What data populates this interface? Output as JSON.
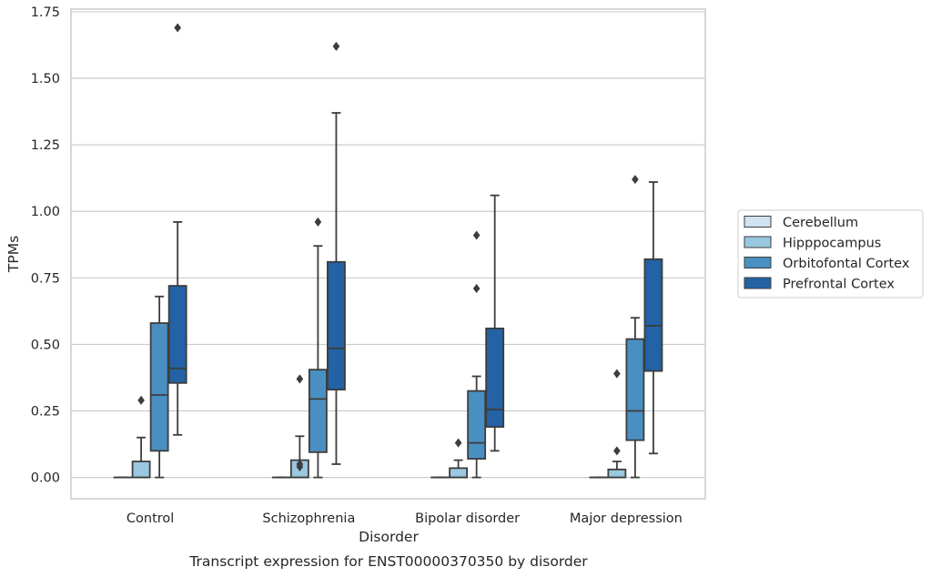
{
  "chart_data": {
    "type": "box",
    "title": "",
    "caption": "Transcript expression for ENST00000370350 by disorder",
    "xlabel": "Disorder",
    "ylabel": "TPMs",
    "ylim": [
      -0.08,
      1.76
    ],
    "yticks": [
      0.0,
      0.25,
      0.5,
      0.75,
      1.0,
      1.25,
      1.5,
      1.75
    ],
    "ytick_labels": [
      "0.00",
      "0.25",
      "0.50",
      "0.75",
      "1.00",
      "1.25",
      "1.50",
      "1.75"
    ],
    "grid": true,
    "legend_position": "right",
    "categories": [
      "Control",
      "Schizophrenia",
      "Bipolar disorder",
      "Major depression"
    ],
    "series": [
      {
        "name": "Cerebellum",
        "color": "#d1e2f2",
        "boxes": [
          {
            "min": 0,
            "q1": 0,
            "median": 0,
            "q3": 0,
            "max": 0,
            "outliers": []
          },
          {
            "min": 0,
            "q1": 0,
            "median": 0,
            "q3": 0,
            "max": 0,
            "outliers": []
          },
          {
            "min": 0,
            "q1": 0,
            "median": 0,
            "q3": 0,
            "max": 0,
            "outliers": []
          },
          {
            "min": 0,
            "q1": 0,
            "median": 0,
            "q3": 0,
            "max": 0,
            "outliers": []
          }
        ]
      },
      {
        "name": "Hipppocampus",
        "color": "#9ac8e0",
        "boxes": [
          {
            "min": 0,
            "q1": 0,
            "median": 0,
            "q3": 0.06,
            "max": 0.15,
            "outliers": [
              0.29
            ]
          },
          {
            "min": 0,
            "q1": 0,
            "median": 0,
            "q3": 0.065,
            "max": 0.155,
            "outliers": [
              0.37,
              0.04,
              0.05
            ]
          },
          {
            "min": 0,
            "q1": 0,
            "median": 0,
            "q3": 0.035,
            "max": 0.065,
            "outliers": [
              0.13
            ]
          },
          {
            "min": 0,
            "q1": 0,
            "median": 0,
            "q3": 0.03,
            "max": 0.06,
            "outliers": [
              0.1,
              0.39
            ]
          }
        ]
      },
      {
        "name": "Orbitofontal Cortex",
        "color": "#4a8fc1",
        "boxes": [
          {
            "min": 0,
            "q1": 0.1,
            "median": 0.31,
            "q3": 0.58,
            "max": 0.68,
            "outliers": []
          },
          {
            "min": 0,
            "q1": 0.095,
            "median": 0.295,
            "q3": 0.405,
            "max": 0.87,
            "outliers": [
              0.96
            ]
          },
          {
            "min": 0,
            "q1": 0.07,
            "median": 0.13,
            "q3": 0.325,
            "max": 0.38,
            "outliers": [
              0.71,
              0.91
            ]
          },
          {
            "min": 0,
            "q1": 0.14,
            "median": 0.25,
            "q3": 0.52,
            "max": 0.6,
            "outliers": [
              1.12
            ]
          }
        ]
      },
      {
        "name": "Prefrontal Cortex",
        "color": "#2262a5",
        "boxes": [
          {
            "min": 0.16,
            "q1": 0.355,
            "median": 0.41,
            "q3": 0.72,
            "max": 0.96,
            "outliers": [
              1.69
            ]
          },
          {
            "min": 0.05,
            "q1": 0.33,
            "median": 0.485,
            "q3": 0.81,
            "max": 1.37,
            "outliers": [
              1.62
            ]
          },
          {
            "min": 0.1,
            "q1": 0.19,
            "median": 0.255,
            "q3": 0.56,
            "max": 1.06,
            "outliers": []
          },
          {
            "min": 0.09,
            "q1": 0.4,
            "median": 0.57,
            "q3": 0.82,
            "max": 1.11,
            "outliers": []
          }
        ]
      }
    ]
  }
}
